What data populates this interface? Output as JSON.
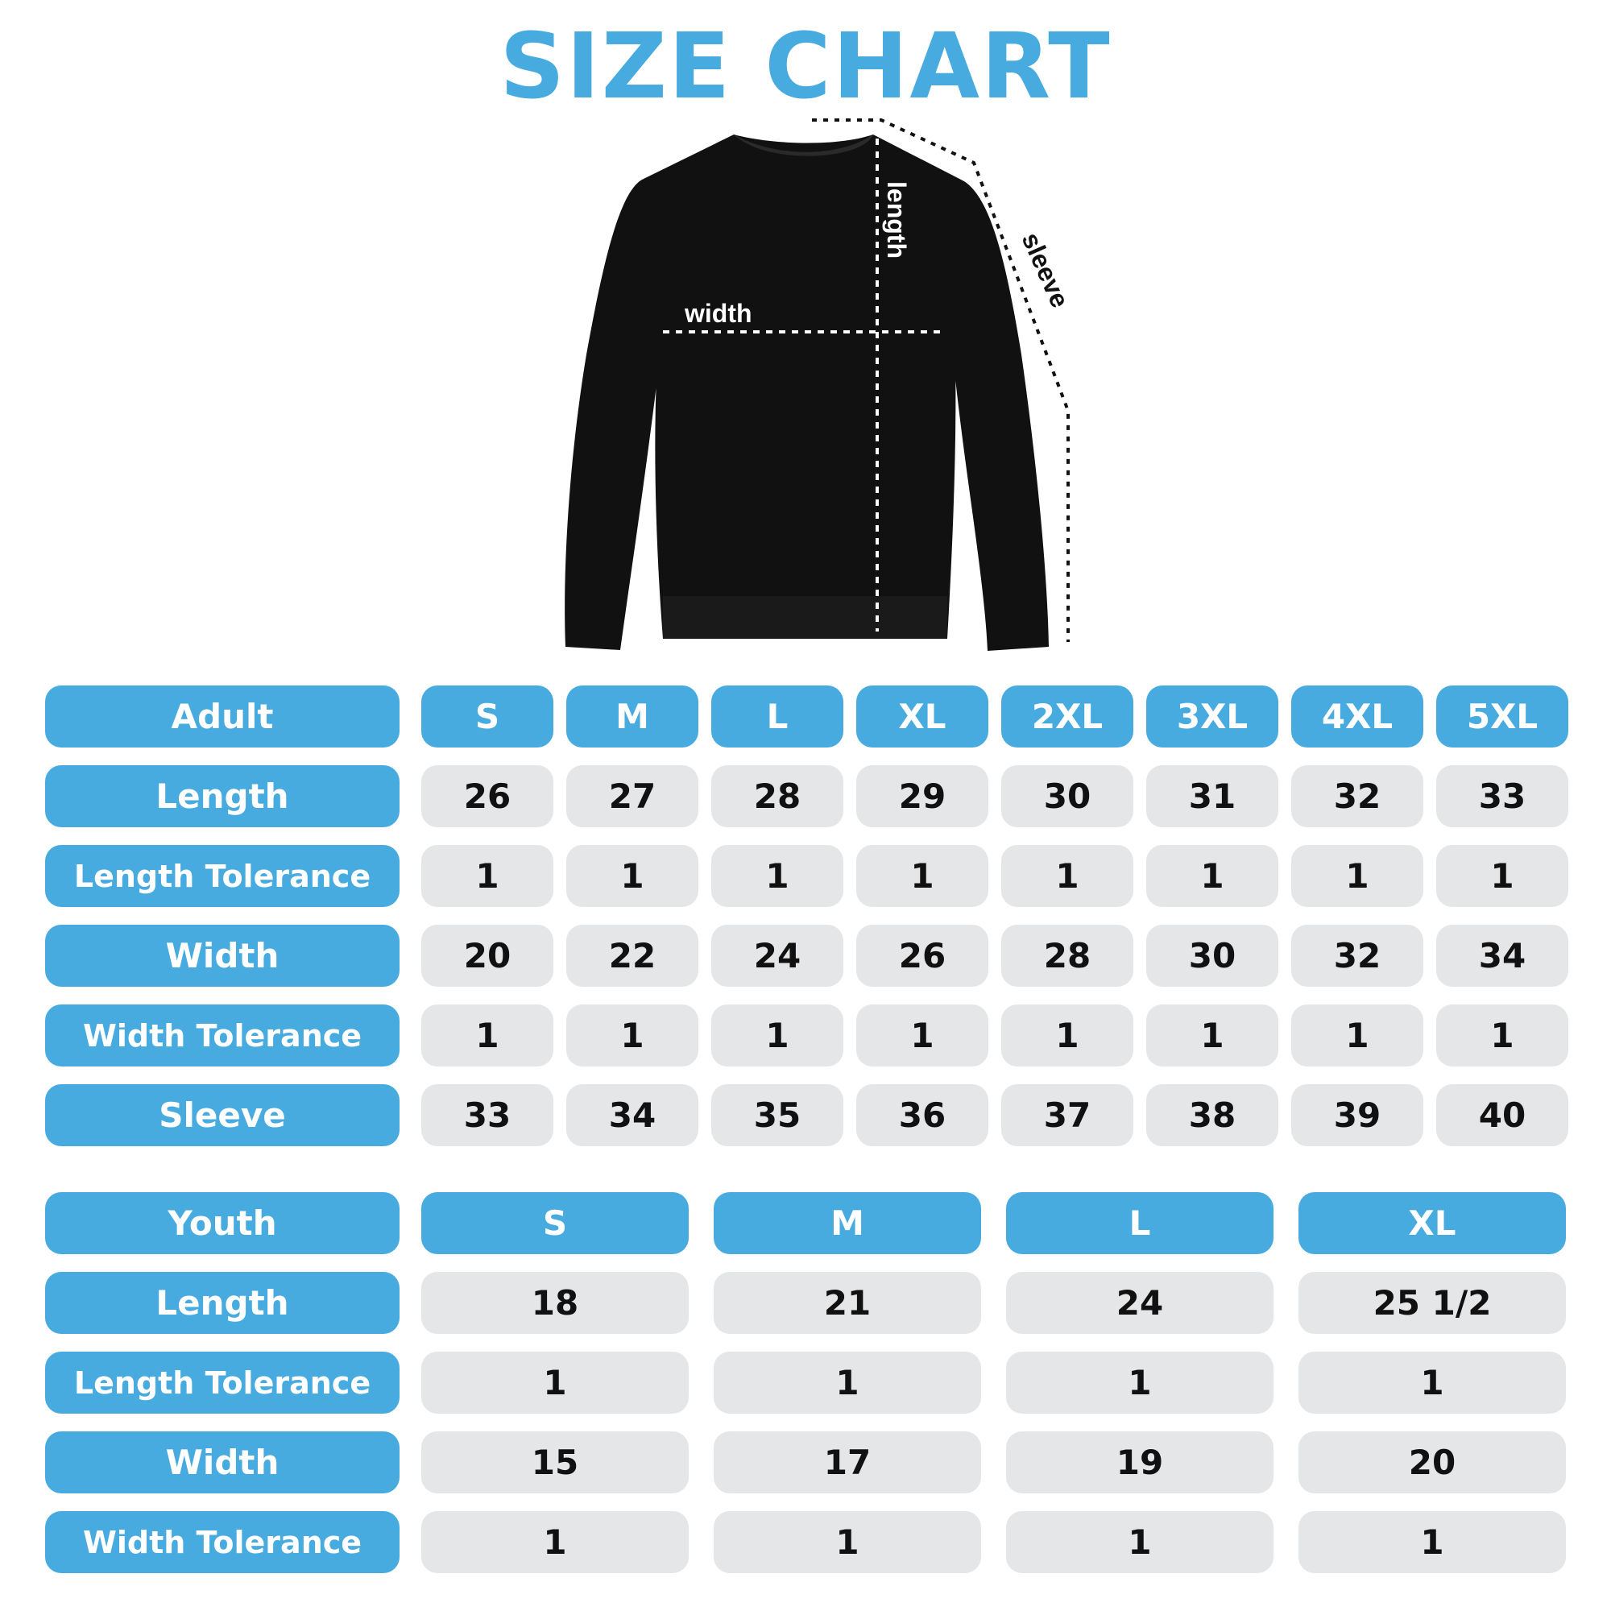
{
  "title": "SIZE CHART",
  "diagram": {
    "length_label": "length",
    "width_label": "width",
    "sleeve_label": "sleeve"
  },
  "colors": {
    "accent": "#47abe0",
    "cell": "#e5e6e8",
    "garment": "#111111"
  },
  "adult": {
    "header": "Adult",
    "sizes": [
      "S",
      "M",
      "L",
      "XL",
      "2XL",
      "3XL",
      "4XL",
      "5XL"
    ],
    "rows": [
      {
        "label": "Length",
        "values": [
          "26",
          "27",
          "28",
          "29",
          "30",
          "31",
          "32",
          "33"
        ]
      },
      {
        "label": "Length Tolerance",
        "values": [
          "1",
          "1",
          "1",
          "1",
          "1",
          "1",
          "1",
          "1"
        ]
      },
      {
        "label": "Width",
        "values": [
          "20",
          "22",
          "24",
          "26",
          "28",
          "30",
          "32",
          "34"
        ]
      },
      {
        "label": "Width Tolerance",
        "values": [
          "1",
          "1",
          "1",
          "1",
          "1",
          "1",
          "1",
          "1"
        ]
      },
      {
        "label": "Sleeve",
        "values": [
          "33",
          "34",
          "35",
          "36",
          "37",
          "38",
          "39",
          "40"
        ]
      }
    ]
  },
  "youth": {
    "header": "Youth",
    "sizes": [
      "S",
      "M",
      "L",
      "XL"
    ],
    "rows": [
      {
        "label": "Length",
        "values": [
          "18",
          "21",
          "24",
          "25 1/2"
        ]
      },
      {
        "label": "Length Tolerance",
        "values": [
          "1",
          "1",
          "1",
          "1"
        ]
      },
      {
        "label": "Width",
        "values": [
          "15",
          "17",
          "19",
          "20"
        ]
      },
      {
        "label": "Width Tolerance",
        "values": [
          "1",
          "1",
          "1",
          "1"
        ]
      }
    ]
  }
}
